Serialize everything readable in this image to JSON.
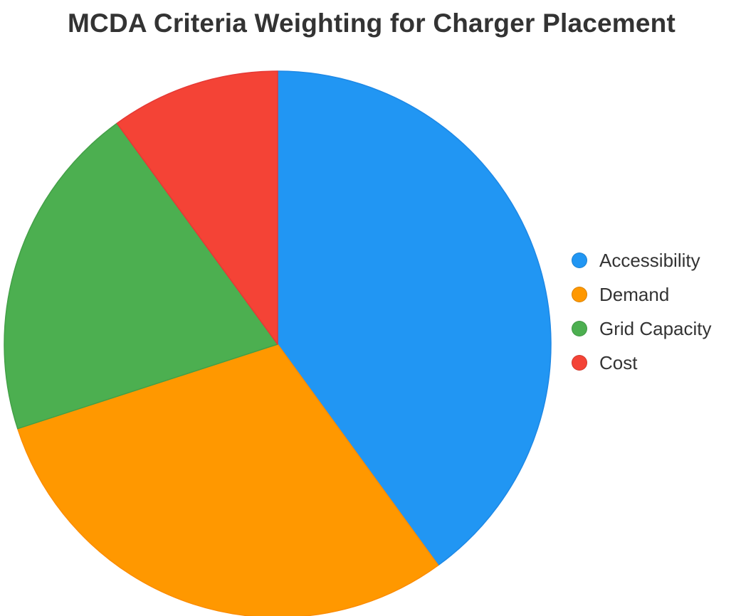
{
  "chart_data": {
    "type": "pie",
    "title": "MCDA Criteria Weighting for Charger Placement",
    "slices": [
      {
        "label": "Accessibility",
        "value": 40,
        "color": "#2196F3",
        "stroke": "#1E88E5"
      },
      {
        "label": "Demand",
        "value": 30,
        "color": "#FF9800",
        "stroke": "#FB8C00"
      },
      {
        "label": "Grid Capacity",
        "value": 20,
        "color": "#4CAF50",
        "stroke": "#43A047"
      },
      {
        "label": "Cost",
        "value": 10,
        "color": "#F44336",
        "stroke": "#E53935"
      }
    ],
    "legend_position": "right"
  }
}
